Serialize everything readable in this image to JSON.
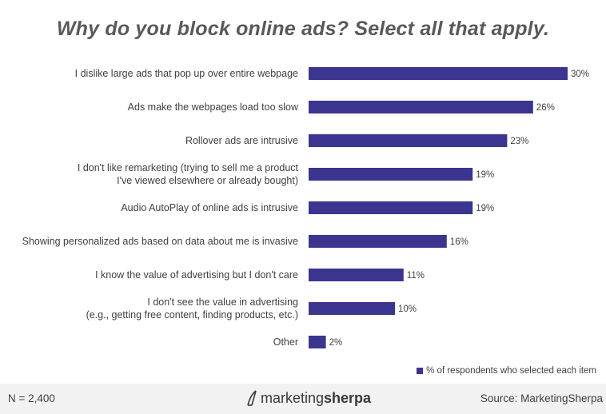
{
  "colors": {
    "bar": "#3b3590",
    "title": "#595959",
    "text": "#404040",
    "footer_bg": "#f2f2f2"
  },
  "chart_data": {
    "type": "bar",
    "orientation": "horizontal",
    "title": "Why do you block online ads? Select all that apply.",
    "categories": [
      [
        "I dislike large ads that pop up over entire webpage"
      ],
      [
        "Ads make the webpages load too slow"
      ],
      [
        "Rollover ads are intrusive"
      ],
      [
        "I don't like remarketing (trying to sell me a product",
        "I've viewed elsewhere or already bought)"
      ],
      [
        "Audio AutoPlay of online ads is intrusive"
      ],
      [
        "Showing personalized ads based on data about me is invasive"
      ],
      [
        "I know the value of advertising but I don't care"
      ],
      [
        "I don't see the value in advertising",
        "(e.g., getting free content, finding products, etc.)"
      ],
      [
        "Other"
      ]
    ],
    "values": [
      30,
      26,
      23,
      19,
      19,
      16,
      11,
      10,
      2
    ],
    "value_labels": [
      "30%",
      "26%",
      "23%",
      "19%",
      "19%",
      "16%",
      "11%",
      "10%",
      "2%"
    ],
    "unit": "%",
    "xlim": [
      0,
      30
    ],
    "grid": false,
    "legend": {
      "label": "% of respondents who selected each item",
      "placement": "bottom-right"
    }
  },
  "footer": {
    "n_label": "N = 2,400",
    "logo_part1": "marketing",
    "logo_part2": "sherpa",
    "source": "Source: MarketingSherpa"
  }
}
